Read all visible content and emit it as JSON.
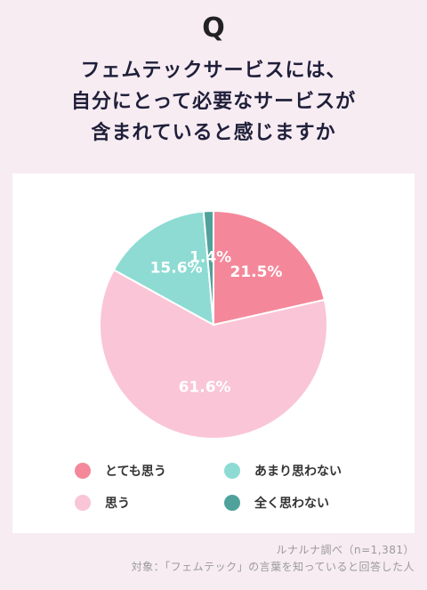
{
  "question_mark": "Q",
  "title_lines": [
    "フェムテックサービスには、",
    "自分にとって必要なサービスが",
    "含まれていると感じますか"
  ],
  "chart_data": {
    "type": "pie",
    "slices": [
      {
        "label": "とても思う",
        "value": 21.5,
        "value_label": "21.5%",
        "color": "#f4889a"
      },
      {
        "label": "思う",
        "value": 61.6,
        "value_label": "61.6%",
        "color": "#f9c5d7"
      },
      {
        "label": "あまり思わない",
        "value": 15.6,
        "value_label": "15.6%",
        "color": "#8ddbd3"
      },
      {
        "label": "全く思わない",
        "value": 1.4,
        "value_label": "1.4%",
        "color": "#4fa29b"
      }
    ],
    "start_angle_deg": 0,
    "direction": "clockwise",
    "legend_position": "bottom"
  },
  "legend": [
    {
      "label": "とても思う",
      "color": "#f4889a"
    },
    {
      "label": "あまり思わない",
      "color": "#8ddbd3"
    },
    {
      "label": "思う",
      "color": "#f9c5d7"
    },
    {
      "label": "全く思わない",
      "color": "#4fa29b"
    }
  ],
  "footer": {
    "source": "ルナルナ調べ（n=1,381）",
    "target": "対象：「フェムテック」の言葉を知っていると回答した人"
  }
}
